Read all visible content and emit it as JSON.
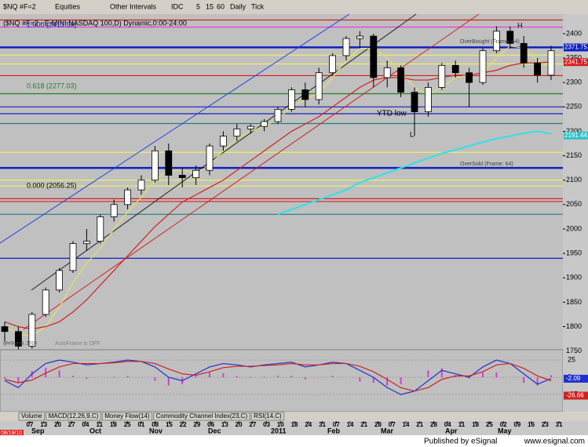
{
  "toolbar": {
    "symbol": "$NQ #F=2",
    "items": [
      "Equities",
      "Other Intervals",
      "IDC",
      "5",
      "15",
      "60",
      "Daily",
      "Tick"
    ]
  },
  "chart_data": {
    "type": "candlestick",
    "title": "($NQ #F=2 - E-MINI NASDAQ 100,D) Dynamic,0:00-24:00",
    "open": [
      1800,
      1790,
      1760,
      1825,
      1875,
      1915,
      1970,
      1975,
      2025,
      2050,
      2080,
      2100,
      2160,
      2110,
      2105,
      2120,
      2170,
      2190,
      2205,
      2210,
      2220,
      2245,
      2285,
      2265,
      2320,
      2355,
      2390,
      2395,
      2310,
      2330,
      2280,
      2240,
      2290,
      2335,
      2320,
      2300,
      2365,
      2405,
      2380,
      2340,
      2315
    ],
    "high": [
      1810,
      1800,
      1830,
      1880,
      1920,
      1975,
      2000,
      2030,
      2060,
      2085,
      2110,
      2170,
      2175,
      2125,
      2130,
      2175,
      2200,
      2215,
      2215,
      2225,
      2250,
      2290,
      2300,
      2330,
      2360,
      2395,
      2405,
      2400,
      2345,
      2335,
      2290,
      2300,
      2340,
      2345,
      2330,
      2370,
      2415,
      2415,
      2395,
      2350,
      2375
    ],
    "low": [
      1770,
      1745,
      1755,
      1820,
      1870,
      1910,
      1955,
      1970,
      2015,
      2040,
      2070,
      2095,
      2090,
      2085,
      2090,
      2110,
      2160,
      2180,
      2195,
      2200,
      2215,
      2240,
      2250,
      2255,
      2315,
      2345,
      2370,
      2290,
      2290,
      2270,
      2190,
      2230,
      2285,
      2310,
      2250,
      2295,
      2360,
      2370,
      2330,
      2300,
      2305
    ],
    "close": [
      1790,
      1760,
      1825,
      1875,
      1915,
      1970,
      1975,
      2025,
      2050,
      2080,
      2100,
      2160,
      2110,
      2105,
      2120,
      2170,
      2190,
      2205,
      2210,
      2220,
      2245,
      2285,
      2265,
      2320,
      2355,
      2390,
      2395,
      2310,
      2330,
      2280,
      2240,
      2290,
      2335,
      2320,
      2300,
      2365,
      2405,
      2380,
      2340,
      2315,
      2365
    ],
    "moving_averages": [
      {
        "color": "#e8e060",
        "values": [
          1800,
          1785,
          1780,
          1800,
          1840,
          1890,
          1930,
          1960,
          2000,
          2035,
          2065,
          2100,
          2120,
          2120,
          2115,
          2130,
          2160,
          2185,
          2200,
          2210,
          2225,
          2250,
          2265,
          2280,
          2310,
          2345,
          2370,
          2370,
          2350,
          2320,
          2290,
          2275,
          2290,
          2310,
          2315,
          2320,
          2350,
          2375,
          2370,
          2345,
          2330
        ]
      },
      {
        "color": "#d02020",
        "values": [
          1810,
          1800,
          1795,
          1800,
          1810,
          1830,
          1855,
          1885,
          1915,
          1945,
          1975,
          2005,
          2030,
          2055,
          2070,
          2085,
          2100,
          2120,
          2140,
          2160,
          2180,
          2200,
          2215,
          2230,
          2250,
          2270,
          2290,
          2305,
          2310,
          2310,
          2305,
          2305,
          2310,
          2315,
          2315,
          2320,
          2325,
          2335,
          2340,
          2340,
          2342
        ]
      },
      {
        "color": "#30e0e8",
        "values": [
          null,
          null,
          null,
          null,
          null,
          null,
          null,
          null,
          null,
          null,
          null,
          null,
          null,
          null,
          null,
          null,
          null,
          null,
          null,
          null,
          2030,
          2040,
          2050,
          2060,
          2070,
          2080,
          2095,
          2105,
          2115,
          2125,
          2135,
          2145,
          2155,
          2162,
          2170,
          2178,
          2185,
          2190,
          2196,
          2200,
          2195
        ]
      }
    ],
    "levels": [
      {
        "value": 2428,
        "color": "#d02020"
      },
      {
        "value": 2413.5,
        "color": "#e040e0"
      },
      {
        "value": 2372,
        "color": "#1020c0"
      },
      {
        "value": 2356,
        "color": "#f0f060"
      },
      {
        "value": 2338,
        "color": "#f0f060"
      },
      {
        "value": 2314,
        "color": "#d02020"
      },
      {
        "value": 2277.03,
        "color": "#208020"
      },
      {
        "value": 2250,
        "color": "#1020c0"
      },
      {
        "value": 2236,
        "color": "#1020c0"
      },
      {
        "value": 2216,
        "color": "#208080"
      },
      {
        "value": 2157,
        "color": "#f0f060"
      },
      {
        "value": 2125,
        "color": "#1020c0"
      },
      {
        "value": 2100,
        "color": "#f0f060"
      },
      {
        "value": 2088,
        "color": "#f0f060"
      },
      {
        "value": 2062,
        "color": "#d02020"
      },
      {
        "value": 2056.25,
        "color": "#d02020"
      },
      {
        "value": 2030,
        "color": "#208080"
      },
      {
        "value": 1940,
        "color": "#1020c0"
      }
    ],
    "ylim": [
      1735,
      2440
    ],
    "yticks": [
      1750,
      1800,
      1850,
      1900,
      1950,
      2000,
      2050,
      2100,
      2150,
      2200,
      2250,
      2300,
      2350,
      2400
    ],
    "price_badges": [
      {
        "value": 2371.75,
        "color": "#1020c0"
      },
      {
        "value": 2341.75,
        "color": "#d02020"
      },
      {
        "value": 2191.44,
        "color": "#30c0c8"
      }
    ],
    "annotations": [
      "1.000 (2413.50)",
      "0.618 (2277.03)",
      "0.000 (2056.25)",
      "YTD low",
      "L",
      "H",
      "OverBought (Frame: 64)",
      "OverSold (Frame: 64)",
      "AutoFrame is OFF",
      "@eSignal, 2010"
    ],
    "macd": {
      "ylim": [
        -50,
        40
      ],
      "yticks": [
        25,
        0,
        -25
      ],
      "series": [
        {
          "color": "#2030d0",
          "values": [
            -5,
            -15,
            5,
            20,
            25,
            22,
            18,
            20,
            22,
            25,
            23,
            15,
            0,
            -5,
            5,
            15,
            20,
            18,
            15,
            18,
            20,
            22,
            15,
            18,
            22,
            20,
            10,
            0,
            -15,
            -25,
            -20,
            -5,
            10,
            5,
            0,
            15,
            25,
            20,
            5,
            -10,
            -2
          ]
        },
        {
          "color": "#d02020",
          "values": [
            -3,
            -8,
            -4,
            6,
            15,
            20,
            20,
            20,
            21,
            23,
            23,
            20,
            12,
            5,
            3,
            8,
            14,
            16,
            16,
            17,
            18,
            20,
            18,
            18,
            20,
            20,
            16,
            8,
            -3,
            -15,
            -20,
            -15,
            -3,
            2,
            2,
            8,
            18,
            20,
            13,
            2,
            -5
          ]
        }
      ],
      "histogram": {
        "color": "#d040d0",
        "values": [
          -2,
          -7,
          9,
          14,
          10,
          2,
          -2,
          0,
          1,
          2,
          0,
          -5,
          -12,
          -10,
          2,
          7,
          6,
          2,
          -1,
          1,
          2,
          2,
          -3,
          0,
          2,
          0,
          -6,
          -8,
          -12,
          -10,
          0,
          10,
          13,
          3,
          -2,
          7,
          7,
          0,
          -8,
          -12,
          3
        ]
      },
      "badges": [
        -2.09,
        -26.66
      ]
    },
    "tabs": [
      "Volume",
      "MACD(12,26,9,C)",
      "Money Flow(14)",
      "Commodity Channel Index(23,C)",
      "RSI(14,C)"
    ],
    "x_day_labels": [
      "07",
      "13",
      "20",
      "27",
      "04",
      "11",
      "18",
      "25",
      "01",
      "08",
      "15",
      "22",
      "29",
      "06",
      "13",
      "20",
      "27",
      "03",
      "10",
      "18",
      "24",
      "31",
      "07",
      "14",
      "21",
      "28",
      "07",
      "14",
      "21",
      "28",
      "04",
      "11",
      "18",
      "25",
      "02",
      "09",
      "16",
      "23",
      "31"
    ],
    "x_month_labels": [
      "08/19/10",
      "Sep",
      "Oct",
      "Nov",
      "Dec",
      "2011",
      "Feb",
      "Mar",
      "Apr",
      "May"
    ]
  },
  "footer": {
    "left": "Published by eSignal",
    "right": "www.esignal.com"
  }
}
